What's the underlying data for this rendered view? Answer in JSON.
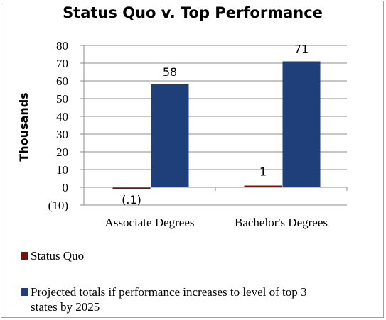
{
  "chart_data": {
    "type": "bar",
    "title": "Status Quo v. Top Performance",
    "ylabel": "Thousands",
    "xlabel": "",
    "categories": [
      "Associate Degrees",
      "Bachelor's Degrees"
    ],
    "ylim": [
      -10,
      80
    ],
    "yticks": [
      -10,
      0,
      10,
      20,
      30,
      40,
      50,
      60,
      70,
      80
    ],
    "ytick_labels": [
      "(10)",
      "0",
      "10",
      "20",
      "30",
      "40",
      "50",
      "60",
      "70",
      "80"
    ],
    "grid": true,
    "legend_position": "bottom",
    "series": [
      {
        "name": "Status Quo",
        "color": "#7b1010",
        "values": [
          -0.1,
          1
        ],
        "labels": [
          "(.1)",
          "1"
        ]
      },
      {
        "name": "Projected totals if performance increases to level of top 3 states by 2025",
        "color": "#1f3f7a",
        "values": [
          58,
          71
        ],
        "labels": [
          "58",
          "71"
        ]
      }
    ]
  }
}
